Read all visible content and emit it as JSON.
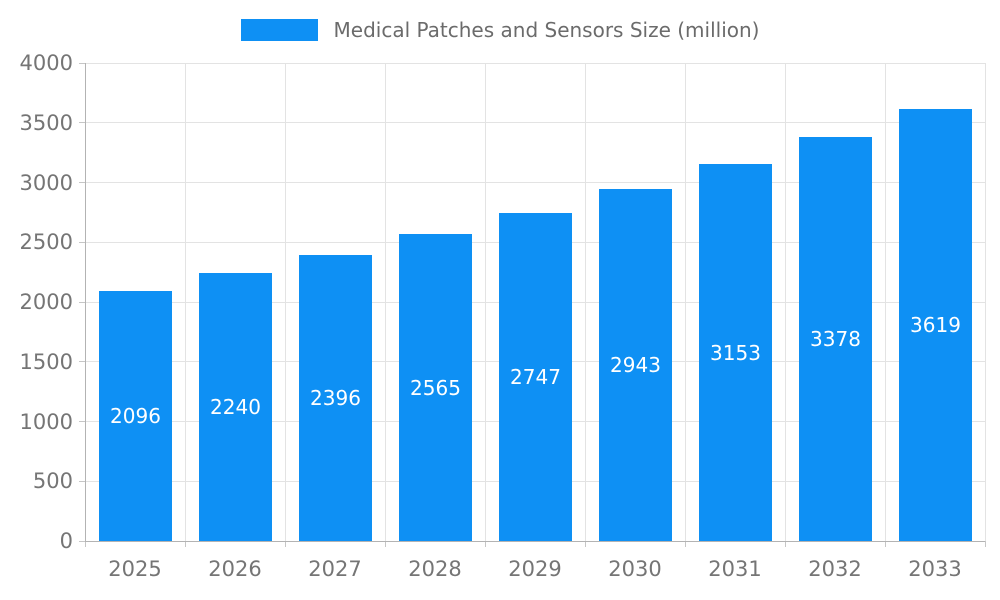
{
  "chart_data": {
    "type": "bar",
    "title": "Medical Patches and Sensors Size (million)",
    "categories": [
      "2025",
      "2026",
      "2027",
      "2028",
      "2029",
      "2030",
      "2031",
      "2032",
      "2033"
    ],
    "values": [
      2096,
      2240,
      2396,
      2565,
      2747,
      2943,
      3153,
      3378,
      3619
    ],
    "xlabel": "",
    "ylabel": "",
    "ylim": [
      0,
      4000
    ],
    "yticks": [
      0,
      500,
      1000,
      1500,
      2000,
      2500,
      3000,
      3500,
      4000
    ],
    "grid": true,
    "legend_position": "top",
    "data_labels": "inside-middle",
    "colors": {
      "bar": "#0e90f4",
      "value_label": "#ffffff",
      "axis_text": "#757575",
      "title_text": "#6b6b6b",
      "gridline": "#e3e3e3",
      "axis_line": "#b3b3b3",
      "tick": "#c6c6c6",
      "background": "#ffffff"
    }
  }
}
